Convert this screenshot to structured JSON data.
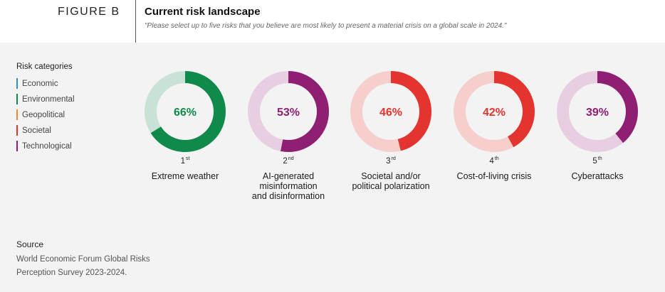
{
  "header": {
    "figure_label": "FIGURE B",
    "title": "Current risk landscape",
    "subtitle": "\"Please select up to five risks that you believe are most likely to present a material crisis on a global scale in 2024.\""
  },
  "legend": {
    "title": "Risk categories",
    "items": [
      {
        "label": "Economic",
        "color": "#2f8ec6"
      },
      {
        "label": "Environmental",
        "color": "#108a4b"
      },
      {
        "label": "Geopolitical",
        "color": "#ea8b3b"
      },
      {
        "label": "Societal",
        "color": "#e3342f"
      },
      {
        "label": "Technological",
        "color": "#8e1f73"
      }
    ]
  },
  "chart_data": {
    "type": "donut",
    "series": [
      {
        "rank": "1",
        "suffix": "st",
        "value": 66,
        "value_label": "66%",
        "label": "Extreme weather",
        "category": "Environmental",
        "color": "#108a4b",
        "track": "#c8e2d5"
      },
      {
        "rank": "2",
        "suffix": "nd",
        "value": 53,
        "value_label": "53%",
        "label": "AI-generated\nmisinformation\nand disinformation",
        "category": "Technological",
        "color": "#8e1f73",
        "track": "#e7cfe1"
      },
      {
        "rank": "3",
        "suffix": "rd",
        "value": 46,
        "value_label": "46%",
        "label": "Societal and/or\npolitical polarization",
        "category": "Societal",
        "color": "#e3342f",
        "track": "#f6cfcd"
      },
      {
        "rank": "4",
        "suffix": "th",
        "value": 42,
        "value_label": "42%",
        "label": "Cost-of-living crisis",
        "category": "Societal",
        "color": "#e3342f",
        "track": "#f6cfcd"
      },
      {
        "rank": "5",
        "suffix": "th",
        "value": 39,
        "value_label": "39%",
        "label": "Cyberattacks",
        "category": "Technological",
        "color": "#8e1f73",
        "track": "#e7cfe1"
      }
    ]
  },
  "source": {
    "title": "Source",
    "text": "World Economic Forum Global Risks Perception Survey 2023-2024."
  }
}
